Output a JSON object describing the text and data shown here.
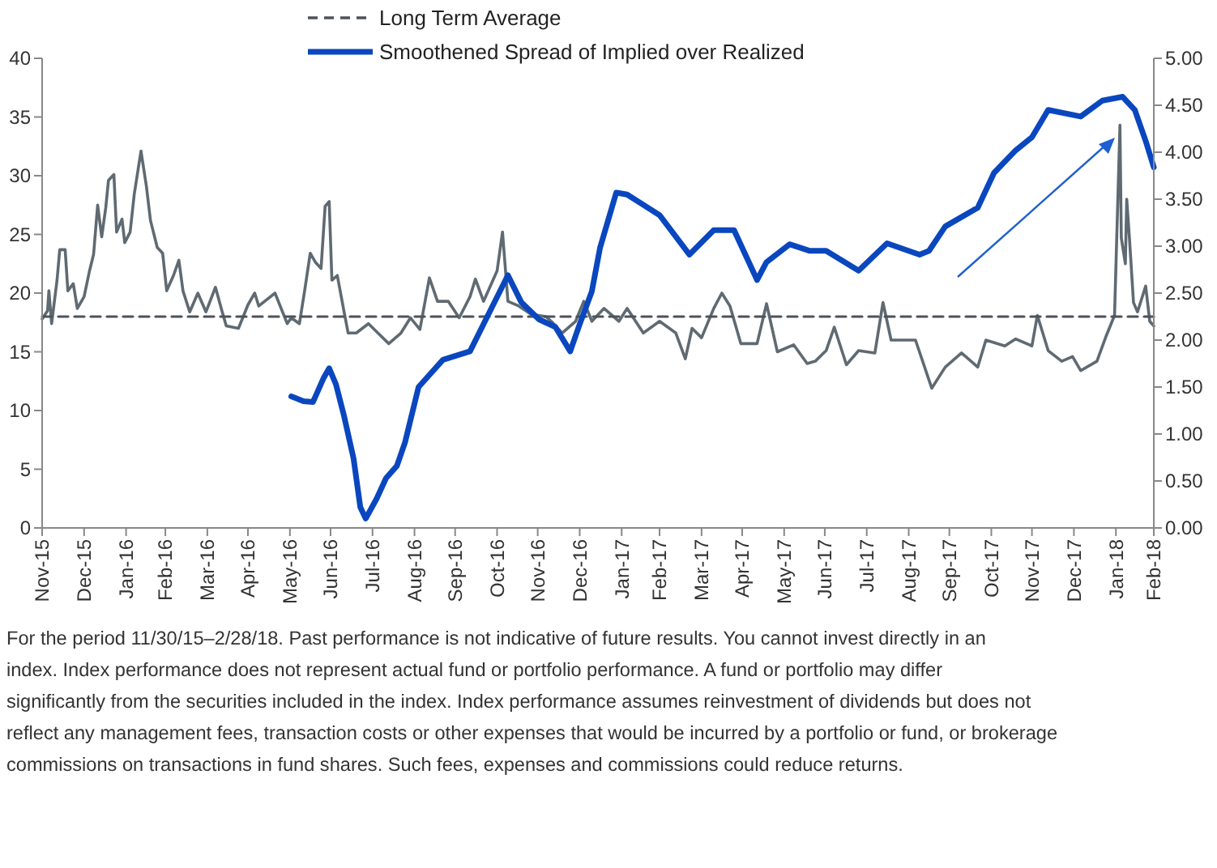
{
  "chart_data": {
    "type": "line",
    "xlim": [
      "2015-11-30",
      "2018-02-28"
    ],
    "xticks": [
      {
        "value": "2015-11-30",
        "label": "Nov-15"
      },
      {
        "value": "2015-12-31",
        "label": "Dec-15"
      },
      {
        "value": "2016-01-31",
        "label": "Jan-16"
      },
      {
        "value": "2016-02-29",
        "label": "Feb-16"
      },
      {
        "value": "2016-03-31",
        "label": "Mar-16"
      },
      {
        "value": "2016-04-30",
        "label": "Apr-16"
      },
      {
        "value": "2016-05-31",
        "label": "May-16"
      },
      {
        "value": "2016-06-30",
        "label": "Jun-16"
      },
      {
        "value": "2016-07-31",
        "label": "Jul-16"
      },
      {
        "value": "2016-08-31",
        "label": "Aug-16"
      },
      {
        "value": "2016-09-30",
        "label": "Sep-16"
      },
      {
        "value": "2016-10-31",
        "label": "Oct-16"
      },
      {
        "value": "2016-11-30",
        "label": "Nov-16"
      },
      {
        "value": "2016-12-31",
        "label": "Dec-16"
      },
      {
        "value": "2017-01-31",
        "label": "Jan-17"
      },
      {
        "value": "2017-02-28",
        "label": "Feb-17"
      },
      {
        "value": "2017-03-31",
        "label": "Mar-17"
      },
      {
        "value": "2017-04-30",
        "label": "Apr-17"
      },
      {
        "value": "2017-05-31",
        "label": "May-17"
      },
      {
        "value": "2017-06-30",
        "label": "Jun-17"
      },
      {
        "value": "2017-07-31",
        "label": "Jul-17"
      },
      {
        "value": "2017-08-31",
        "label": "Aug-17"
      },
      {
        "value": "2017-09-30",
        "label": "Sep-17"
      },
      {
        "value": "2017-10-31",
        "label": "Oct-17"
      },
      {
        "value": "2017-11-30",
        "label": "Nov-17"
      },
      {
        "value": "2017-12-31",
        "label": "Dec-17"
      },
      {
        "value": "2018-01-31",
        "label": "Jan-18"
      },
      {
        "value": "2018-02-28",
        "label": "Feb-18"
      }
    ],
    "ylim": [
      0,
      40
    ],
    "yticks": [
      0,
      5,
      10,
      15,
      20,
      25,
      30,
      35,
      40
    ],
    "y2lim": [
      0,
      5
    ],
    "y2ticks": [
      {
        "value": 0,
        "label": "0.00"
      },
      {
        "value": 0.5,
        "label": "0.50"
      },
      {
        "value": 1,
        "label": "1.00"
      },
      {
        "value": 1.5,
        "label": "1.50"
      },
      {
        "value": 2,
        "label": "2.00"
      },
      {
        "value": 2.5,
        "label": "2.50"
      },
      {
        "value": 3,
        "label": "3.00"
      },
      {
        "value": 3.5,
        "label": "3.50"
      },
      {
        "value": 4,
        "label": "4.00"
      },
      {
        "value": 4.5,
        "label": "4.50"
      },
      {
        "value": 5,
        "label": "5.00"
      }
    ],
    "legend": "top",
    "series": [
      {
        "color": "#5f6a72",
        "line_style": "solid",
        "x": [
          "2015-11-30",
          "2015-12-04",
          "2015-12-05",
          "2015-12-07",
          "2015-12-11",
          "2015-12-13",
          "2015-12-17",
          "2015-12-19",
          "2015-12-23",
          "2015-12-26",
          "2015-12-31",
          "2016-01-04",
          "2016-01-07",
          "2016-01-10",
          "2016-01-13",
          "2016-01-16",
          "2016-01-18",
          "2016-01-22",
          "2016-01-24",
          "2016-01-28",
          "2016-01-30",
          "2016-02-03",
          "2016-02-06",
          "2016-02-11",
          "2016-02-15",
          "2016-02-18",
          "2016-02-23",
          "2016-02-27",
          "2016-03-01",
          "2016-03-06",
          "2016-03-10",
          "2016-03-13",
          "2016-03-18",
          "2016-03-24",
          "2016-03-30",
          "2016-04-06",
          "2016-04-11",
          "2016-04-14",
          "2016-04-23",
          "2016-04-30",
          "2016-05-05",
          "2016-05-08",
          "2016-05-20",
          "2016-05-29",
          "2016-06-01",
          "2016-06-07",
          "2016-06-11",
          "2016-06-15",
          "2016-06-19",
          "2016-06-23",
          "2016-06-26",
          "2016-06-29",
          "2016-07-01",
          "2016-07-05",
          "2016-07-10",
          "2016-07-13",
          "2016-07-19",
          "2016-07-28",
          "2016-08-04",
          "2016-08-12",
          "2016-08-21",
          "2016-08-28",
          "2016-09-04",
          "2016-09-11",
          "2016-09-17",
          "2016-09-25",
          "2016-10-03",
          "2016-10-11",
          "2016-10-15",
          "2016-10-21",
          "2016-10-31",
          "2016-11-04",
          "2016-11-08",
          "2016-11-16",
          "2016-11-25",
          "2016-12-06",
          "2016-12-10",
          "2016-12-18",
          "2016-12-28",
          "2017-01-03",
          "2017-01-09",
          "2017-01-18",
          "2017-01-29",
          "2017-02-04",
          "2017-02-16",
          "2017-02-28",
          "2017-03-12",
          "2017-03-19",
          "2017-03-24",
          "2017-03-31",
          "2017-04-09",
          "2017-04-15",
          "2017-04-21",
          "2017-04-29",
          "2017-05-11",
          "2017-05-18",
          "2017-05-26",
          "2017-06-07",
          "2017-06-17",
          "2017-06-23",
          "2017-07-01",
          "2017-07-07",
          "2017-07-16",
          "2017-07-25",
          "2017-08-06",
          "2017-08-12",
          "2017-08-18",
          "2017-08-27",
          "2017-09-05",
          "2017-09-17",
          "2017-09-27",
          "2017-10-09",
          "2017-10-21",
          "2017-10-27",
          "2017-11-10",
          "2017-11-18",
          "2017-11-30",
          "2017-12-04",
          "2017-12-12",
          "2017-12-22",
          "2017-12-30",
          "2018-01-05",
          "2018-01-17",
          "2018-01-24",
          "2018-01-30",
          "2018-02-03",
          "2018-02-04",
          "2018-02-07",
          "2018-02-08",
          "2018-02-10",
          "2018-02-13",
          "2018-02-16",
          "2018-02-22",
          "2018-02-25",
          "2018-02-28"
        ],
        "values": [
          17.8,
          18.5,
          20.2,
          17.4,
          21.1,
          23.7,
          23.7,
          20.2,
          20.8,
          18.7,
          19.7,
          21.9,
          23.3,
          27.5,
          24.8,
          27.3,
          29.6,
          30.1,
          25.2,
          26.3,
          24.3,
          25.2,
          28.4,
          32.1,
          29.1,
          26.2,
          23.9,
          23.4,
          20.2,
          21.5,
          22.8,
          20.2,
          18.4,
          20.0,
          18.4,
          20.5,
          18.4,
          17.2,
          17.0,
          19.0,
          20.0,
          18.9,
          20.0,
          17.4,
          17.9,
          17.4,
          20.3,
          23.4,
          22.6,
          22.1,
          27.4,
          27.8,
          21.1,
          21.5,
          18.4,
          16.6,
          16.6,
          17.4,
          16.6,
          15.7,
          16.6,
          17.9,
          16.9,
          21.3,
          19.3,
          19.3,
          17.9,
          19.7,
          21.2,
          19.3,
          21.9,
          25.2,
          19.3,
          18.9,
          18.2,
          18.0,
          17.6,
          16.6,
          17.6,
          19.3,
          17.6,
          18.7,
          17.6,
          18.7,
          16.6,
          17.6,
          16.6,
          14.4,
          17.0,
          16.2,
          18.7,
          20.0,
          18.9,
          15.7,
          15.7,
          19.1,
          15.0,
          15.6,
          14.0,
          14.2,
          15.1,
          17.1,
          13.9,
          15.1,
          14.9,
          19.2,
          16.0,
          16.0,
          16.0,
          11.9,
          13.7,
          14.9,
          13.7,
          16.0,
          15.5,
          16.1,
          15.5,
          18.1,
          15.1,
          14.2,
          14.6,
          13.4,
          14.2,
          16.4,
          18.1,
          34.3,
          24.7,
          22.5,
          28.0,
          24.7,
          19.2,
          18.4,
          20.6,
          17.6,
          17.2
        ]
      },
      {
        "name": "Long Term Average",
        "color": "#4d5358",
        "line_style": "dashed",
        "x": [
          "2015-11-30",
          "2018-02-28"
        ],
        "values": [
          18,
          18
        ]
      },
      {
        "name": "Smoothened Spread of Implied over Realized",
        "color": "#0a47bf",
        "line_style": "solid",
        "axis": "y2",
        "x": [
          "2016-06-01",
          "2016-06-10",
          "2016-06-17",
          "2016-06-25",
          "2016-06-29",
          "2016-07-04",
          "2016-07-10",
          "2016-07-17",
          "2016-07-22",
          "2016-07-26",
          "2016-08-03",
          "2016-08-10",
          "2016-08-18",
          "2016-08-24",
          "2016-09-03",
          "2016-09-21",
          "2016-10-11",
          "2016-10-21",
          "2016-11-08",
          "2016-11-18",
          "2016-12-01",
          "2016-12-13",
          "2016-12-24",
          "2016-12-31",
          "2017-01-09",
          "2017-01-15",
          "2017-01-27",
          "2017-02-04",
          "2017-02-28",
          "2017-03-22",
          "2017-04-09",
          "2017-04-24",
          "2017-05-11",
          "2017-05-18",
          "2017-06-04",
          "2017-06-19",
          "2017-07-01",
          "2017-07-25",
          "2017-08-15",
          "2017-09-08",
          "2017-09-15",
          "2017-09-27",
          "2017-10-21",
          "2017-11-02",
          "2017-11-18",
          "2017-11-30",
          "2017-12-12",
          "2018-01-05",
          "2018-01-21",
          "2018-02-05",
          "2018-02-14",
          "2018-02-22",
          "2018-02-28"
        ],
        "values": [
          1.4,
          1.35,
          1.34,
          1.6,
          1.7,
          1.53,
          1.19,
          0.74,
          0.22,
          0.1,
          0.31,
          0.53,
          0.66,
          0.91,
          1.5,
          1.79,
          1.88,
          2.17,
          2.69,
          2.4,
          2.22,
          2.14,
          1.88,
          2.17,
          2.52,
          2.98,
          3.57,
          3.55,
          3.33,
          2.91,
          3.17,
          3.17,
          2.64,
          2.83,
          3.02,
          2.95,
          2.95,
          2.74,
          3.03,
          2.91,
          2.95,
          3.21,
          3.41,
          3.78,
          4.02,
          4.16,
          4.45,
          4.38,
          4.55,
          4.59,
          4.45,
          4.12,
          3.84
        ]
      }
    ],
    "annotations": [
      "For the period 11/30/15–2/28/18. Past performance is not indicative of future results. You cannot invest directly in an index. Index performance does not represent actual fund or portfolio performance. A fund or portfolio may differ significantly from the securities included in the index. Index performance assumes reinvestment of dividends but does not reflect any management fees, transaction costs or other expenses that would be incurred by a portfolio or fund, or brokerage commissions on transactions in fund shares. Such fees, expenses and commissions could reduce returns."
    ]
  }
}
